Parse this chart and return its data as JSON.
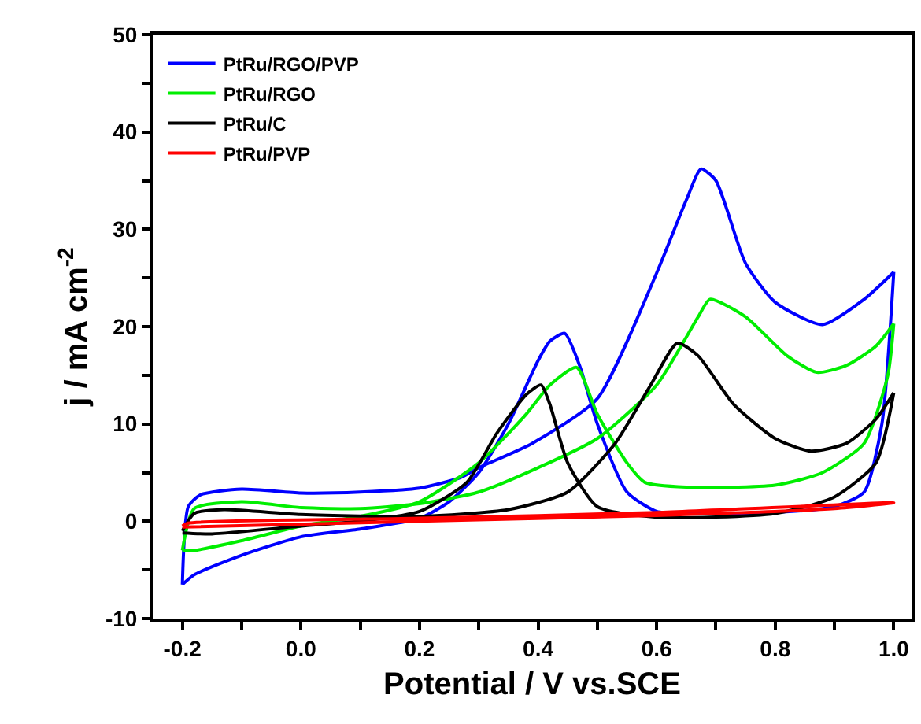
{
  "chart_data": {
    "type": "line",
    "xlabel": "Potential / V vs.SCE",
    "ylabel": "j / mA cm$^{-2}$",
    "xlim": [
      -0.25,
      1.03
    ],
    "ylim": [
      -10,
      50
    ],
    "xticks": [
      -0.2,
      {
        "value": -0.1,
        "label": null
      },
      {
        "value": 0.0,
        "label": "0.0"
      },
      {
        "value": 0.1,
        "label": null
      },
      0.2,
      {
        "value": 0.3,
        "label": null
      },
      0.4,
      {
        "value": 0.5,
        "label": null
      },
      0.6,
      {
        "value": 0.7,
        "label": null
      },
      0.8,
      {
        "value": 0.9,
        "label": null
      },
      {
        "value": 1.0,
        "label": "1.0"
      }
    ],
    "yticks": [
      -10,
      {
        "value": -5,
        "label": null
      },
      0,
      {
        "value": 5,
        "label": null
      },
      10,
      {
        "value": 15,
        "label": null
      },
      20,
      {
        "value": 25,
        "label": null
      },
      30,
      {
        "value": 35,
        "label": null
      },
      40,
      {
        "value": 45,
        "label": null
      },
      50
    ],
    "legend": "top left",
    "marker": "none",
    "line_style": "solid",
    "series": [
      {
        "name": "PtRu/RGO/PVP",
        "color": "#0000ff",
        "x": [
          -0.2,
          -0.19,
          -0.17,
          -0.1,
          0.0,
          0.1,
          0.2,
          0.27,
          0.3,
          0.39,
          0.5,
          0.6,
          0.65,
          0.675,
          0.7,
          0.75,
          0.8,
          0.88,
          0.95,
          1.0
        ],
        "values": [
          -6.5,
          1.5,
          2.7,
          3.3,
          2.9,
          3.0,
          3.4,
          4.5,
          5.5,
          8,
          12.6,
          25.5,
          33,
          36.2,
          35,
          26.5,
          22.5,
          20.2,
          22.8,
          25.6
        ]
      },
      {
        "color": "#0000ff",
        "x": [
          -0.2,
          -0.18,
          -0.1,
          0.0,
          0.1,
          0.2,
          0.25,
          0.3,
          0.35,
          0.4,
          0.42,
          0.445,
          0.47,
          0.5,
          0.55,
          0.6,
          0.65,
          0.8,
          0.9,
          0.95,
          0.98,
          1.0
        ],
        "values": [
          -6.5,
          -5.5,
          -3.5,
          -1.6,
          -0.8,
          0.3,
          2,
          5,
          10,
          16.5,
          18.5,
          19.3,
          16,
          10,
          3,
          1,
          0.8,
          0.9,
          1.5,
          3,
          10,
          25.6
        ]
      },
      {
        "name": "PtRu/RGO",
        "color": "#00ee00",
        "x": [
          -0.2,
          -0.18,
          -0.1,
          0.0,
          0.1,
          0.2,
          0.3,
          0.4,
          0.5,
          0.6,
          0.67,
          0.69,
          0.75,
          0.82,
          0.87,
          0.92,
          0.97,
          1.0
        ],
        "values": [
          -3,
          1.3,
          2,
          1.4,
          1.3,
          1.8,
          3,
          5.5,
          8.5,
          14,
          21,
          22.8,
          21,
          17,
          15.3,
          16,
          18,
          20.3
        ]
      },
      {
        "color": "#00ee00",
        "x": [
          -0.2,
          -0.18,
          -0.1,
          0.0,
          0.1,
          0.2,
          0.3,
          0.38,
          0.42,
          0.465,
          0.5,
          0.55,
          0.58,
          0.65,
          0.8,
          0.88,
          0.95,
          0.99,
          1.0
        ],
        "values": [
          -3,
          -3,
          -2,
          -0.5,
          0.5,
          2,
          6,
          11,
          14,
          15.8,
          11,
          6,
          4,
          3.5,
          3.7,
          5,
          8,
          15,
          20.3
        ]
      },
      {
        "name": "PtRu/C",
        "color": "#000000",
        "x": [
          -0.2,
          -0.18,
          -0.13,
          0.0,
          0.2,
          0.35,
          0.45,
          0.53,
          0.59,
          0.635,
          0.67,
          0.73,
          0.8,
          0.86,
          0.92,
          0.97,
          1.0
        ],
        "values": [
          -1,
          0.8,
          1.2,
          0.7,
          0.5,
          1.2,
          3,
          8,
          14,
          18.3,
          17,
          12,
          8.5,
          7.2,
          8,
          10.5,
          13.2
        ]
      },
      {
        "color": "#000000",
        "x": [
          -0.2,
          -0.15,
          0.0,
          0.1,
          0.2,
          0.28,
          0.33,
          0.38,
          0.405,
          0.42,
          0.45,
          0.5,
          0.6,
          0.8,
          0.9,
          0.97,
          1.0
        ],
        "values": [
          -1.2,
          -1.3,
          -0.5,
          0,
          1,
          4,
          9,
          13,
          14,
          12,
          6,
          1.5,
          0.4,
          0.8,
          2.5,
          6,
          13.2
        ]
      },
      {
        "name": "PtRu/PVP",
        "color": "#ff0000",
        "x": [
          -0.2,
          -0.19,
          0.2,
          0.6,
          1.0,
          0.9,
          0.6,
          0.2,
          -0.2
        ],
        "values": [
          -0.5,
          -0.2,
          0.3,
          0.9,
          1.9,
          1.3,
          0.6,
          0.0,
          -0.6
        ]
      }
    ]
  }
}
